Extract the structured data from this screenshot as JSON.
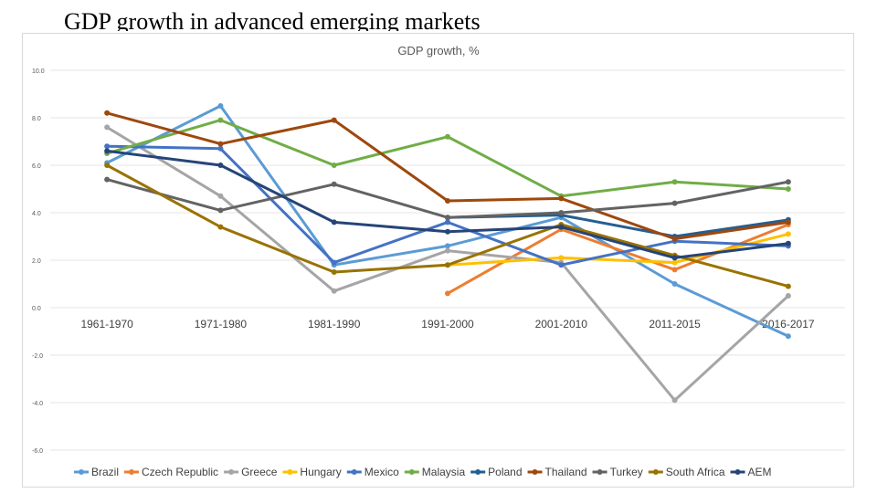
{
  "slide": {
    "title": "GDP growth in advanced emerging markets"
  },
  "chart_data": {
    "type": "line",
    "title": "GDP growth, %",
    "xlabel": "",
    "ylabel": "",
    "ylim": [
      -6,
      10
    ],
    "yticks": [
      10,
      8,
      6,
      4,
      2,
      0,
      -2,
      -4,
      -6
    ],
    "ytick_labels": [
      "10.0",
      "8.0",
      "6.0",
      "4.0",
      "2.0",
      "0.0",
      "-2.0",
      "-4.0",
      "-6.0"
    ],
    "grid": true,
    "legend_position": "bottom",
    "categories": [
      "1961-1970",
      "1971-1980",
      "1981-1990",
      "1991-2000",
      "2001-2010",
      "2011-2015",
      "2016-2017"
    ],
    "series": [
      {
        "name": "Brazil",
        "color": "#5b9bd5",
        "values": [
          6.1,
          8.5,
          1.8,
          2.6,
          3.8,
          1.0,
          -1.2
        ]
      },
      {
        "name": "Czech Republic",
        "color": "#ed7d31",
        "values": [
          null,
          null,
          null,
          0.6,
          3.3,
          1.6,
          3.5
        ]
      },
      {
        "name": "Greece",
        "color": "#a5a5a5",
        "values": [
          7.6,
          4.7,
          0.7,
          2.4,
          1.9,
          -3.9,
          0.5
        ]
      },
      {
        "name": "Hungary",
        "color": "#ffc000",
        "values": [
          null,
          null,
          null,
          1.8,
          2.1,
          1.9,
          3.1
        ]
      },
      {
        "name": "Mexico",
        "color": "#4472c4",
        "values": [
          6.8,
          6.7,
          1.9,
          3.6,
          1.8,
          2.8,
          2.6
        ]
      },
      {
        "name": "Malaysia",
        "color": "#70ad47",
        "values": [
          6.5,
          7.9,
          6.0,
          7.2,
          4.7,
          5.3,
          5.0
        ]
      },
      {
        "name": "Poland",
        "color": "#255e91",
        "values": [
          null,
          null,
          null,
          3.8,
          3.9,
          3.0,
          3.7
        ]
      },
      {
        "name": "Thailand",
        "color": "#9e480e",
        "values": [
          8.2,
          6.9,
          7.9,
          4.5,
          4.6,
          2.9,
          3.6
        ]
      },
      {
        "name": "Turkey",
        "color": "#636363",
        "values": [
          5.4,
          4.1,
          5.2,
          3.8,
          4.0,
          4.4,
          5.3
        ]
      },
      {
        "name": "South Africa",
        "color": "#997300",
        "values": [
          6.0,
          3.4,
          1.5,
          1.8,
          3.5,
          2.2,
          0.9
        ]
      },
      {
        "name": "AEM",
        "color": "#264478",
        "values": [
          6.6,
          6.0,
          3.6,
          3.2,
          3.4,
          2.1,
          2.7
        ]
      }
    ]
  }
}
